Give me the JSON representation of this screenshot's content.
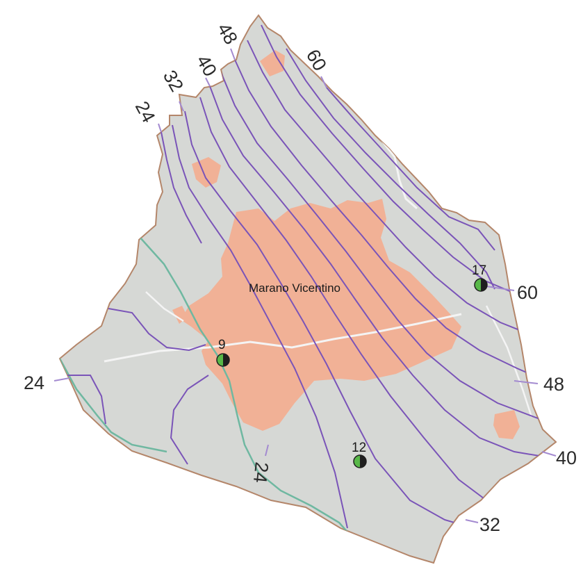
{
  "map": {
    "place_name": "Marano Vicentino",
    "stations": [
      {
        "id": "station-17",
        "label": "17"
      },
      {
        "id": "station-9",
        "label": "9"
      },
      {
        "id": "station-12",
        "label": "12"
      }
    ],
    "contour_labels": {
      "top_48": "48",
      "top_60": "60",
      "top_40": "40",
      "top_32": "32",
      "top_24": "24",
      "left_24": "24",
      "bottom_24": "24",
      "right_60": "60",
      "right_48": "48",
      "right_40": "40",
      "right_32": "32"
    },
    "colors": {
      "land": "#d6d8d5",
      "border": "#b4866a",
      "urban": "#f1b196",
      "isoline": "#7a54b8",
      "stream": "#6fb8a1",
      "road": "#f4f4f4",
      "station_fill": "#58b848",
      "station_dark": "#1f1f1f"
    }
  }
}
